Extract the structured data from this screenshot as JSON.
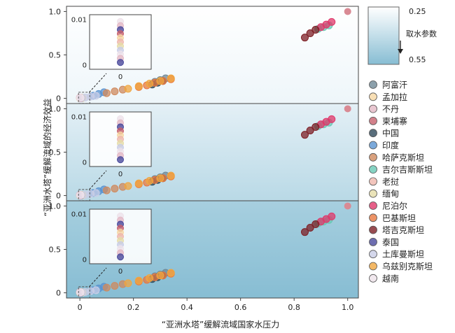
{
  "chart_data": {
    "type": "scatter",
    "xlabel": "“亚洲水塔”缓解流域国家水压力",
    "ylabel": "“亚洲水塔”缓解流域的经济效益",
    "x_ticks": [
      "0",
      "0.2",
      "0.4",
      "0.6",
      "0.8",
      "1.0"
    ],
    "y_ticks": [
      "0",
      "0.5",
      "1.0"
    ],
    "xlim": [
      -0.05,
      1.04
    ],
    "ylim": [
      -0.06,
      1.06
    ],
    "inset": {
      "y_ticks": [
        "0.01",
        "0"
      ],
      "x_tick": "0",
      "ylim": [
        -0.001,
        0.011
      ]
    },
    "colorbar": {
      "label": "取水参数",
      "top": "0.25",
      "bottom": "0.55",
      "top_color": "#ffffff",
      "bottom_color": "#87bdd3"
    },
    "panels": [
      {
        "gradient": [
          "#ffffff",
          "#eef6fa"
        ]
      },
      {
        "gradient": [
          "#e4f0f6",
          "#b9d9e6"
        ]
      },
      {
        "gradient": [
          "#a7cfdf",
          "#87bdd3"
        ]
      }
    ],
    "legend": [
      {
        "name": "阿富汗",
        "color": "#6f8896"
      },
      {
        "name": "孟加拉",
        "color": "#f6d7a2"
      },
      {
        "name": "不丹",
        "color": "#e3b9c6"
      },
      {
        "name": "柬埔寨",
        "color": "#c7606d"
      },
      {
        "name": "中国",
        "color": "#2f4a5b"
      },
      {
        "name": "印度",
        "color": "#5a93d1"
      },
      {
        "name": "哈萨克斯坦",
        "color": "#cf8a5e"
      },
      {
        "name": "吉尔吉斯斯坦",
        "color": "#68c8b4"
      },
      {
        "name": "老挝",
        "color": "#efb6ad"
      },
      {
        "name": "缅甸",
        "color": "#e5dca7"
      },
      {
        "name": "尼泊尔",
        "color": "#e0376a"
      },
      {
        "name": "巴基斯坦",
        "color": "#e87840"
      },
      {
        "name": "塔吉克斯坦",
        "color": "#7e1f25"
      },
      {
        "name": "泰国",
        "color": "#4a4a9c"
      },
      {
        "name": "土库曼斯坦",
        "color": "#c9cde6"
      },
      {
        "name": "乌兹别克斯坦",
        "color": "#f0a640"
      },
      {
        "name": "越南",
        "color": "#eee2ea"
      }
    ],
    "series": [
      {
        "name": "阿富汗",
        "x": [
          0.28,
          0.3,
          0.32
        ],
        "y": [
          0.19,
          0.21,
          0.23
        ]
      },
      {
        "name": "孟加拉",
        "x": [
          0,
          0.005,
          0.01
        ],
        "y": [
          0.002,
          0.003,
          0.004
        ]
      },
      {
        "name": "不丹",
        "x": [
          0.0,
          0.005
        ],
        "y": [
          0.008,
          0.009
        ]
      },
      {
        "name": "柬埔寨",
        "x": [
          0.002,
          0.004
        ],
        "y": [
          0.001,
          0.002
        ]
      },
      {
        "name": "中国",
        "x": [
          0.27,
          0.29,
          0.31
        ],
        "y": [
          0.16,
          0.18,
          0.2
        ]
      },
      {
        "name": "印度",
        "x": [
          0.05,
          0.07,
          0.09
        ],
        "y": [
          0.03,
          0.05,
          0.07
        ]
      },
      {
        "name": "哈萨克斯坦",
        "x": [
          0.1,
          0.13,
          0.16
        ],
        "y": [
          0.06,
          0.08,
          0.1
        ]
      },
      {
        "name": "吉尔吉斯斯坦",
        "x": [
          0.89,
          0.91,
          0.93
        ],
        "y": [
          0.8,
          0.82,
          0.84
        ]
      },
      {
        "name": "老挝",
        "x": [
          0.003,
          0.006
        ],
        "y": [
          0.003,
          0.005
        ]
      },
      {
        "name": "缅甸",
        "x": [
          0.004,
          0.008
        ],
        "y": [
          0.004,
          0.006
        ]
      },
      {
        "name": "尼泊尔",
        "x": [
          0.9,
          0.92,
          0.94
        ],
        "y": [
          0.82,
          0.85,
          0.88
        ]
      },
      {
        "name": "巴基斯坦",
        "x": [
          0.22,
          0.25,
          0.28,
          0.31,
          0.34
        ],
        "y": [
          0.13,
          0.15,
          0.18,
          0.2,
          0.22
        ]
      },
      {
        "name": "塔吉克斯坦",
        "x": [
          0.84,
          0.86,
          0.88
        ],
        "y": [
          0.7,
          0.75,
          0.79
        ]
      },
      {
        "name": "泰国",
        "x": [
          0.002,
          0.004
        ],
        "y": [
          0.002,
          0.004
        ]
      },
      {
        "name": "土库曼斯坦",
        "x": [
          0.02,
          0.04,
          0.06
        ],
        "y": [
          0.01,
          0.02,
          0.03
        ]
      },
      {
        "name": "乌兹别克斯坦",
        "x": [
          0.18,
          0.22,
          0.26,
          0.3,
          0.34
        ],
        "y": [
          0.11,
          0.14,
          0.17,
          0.2,
          0.23
        ]
      },
      {
        "name": "越南",
        "x": [
          0.001,
          0.003
        ],
        "y": [
          0.003,
          0.005
        ]
      }
    ],
    "reference_point": {
      "x": 1.0,
      "y": 1.0,
      "color": "#d98a94"
    },
    "grid": false,
    "legend_placement": "right"
  }
}
